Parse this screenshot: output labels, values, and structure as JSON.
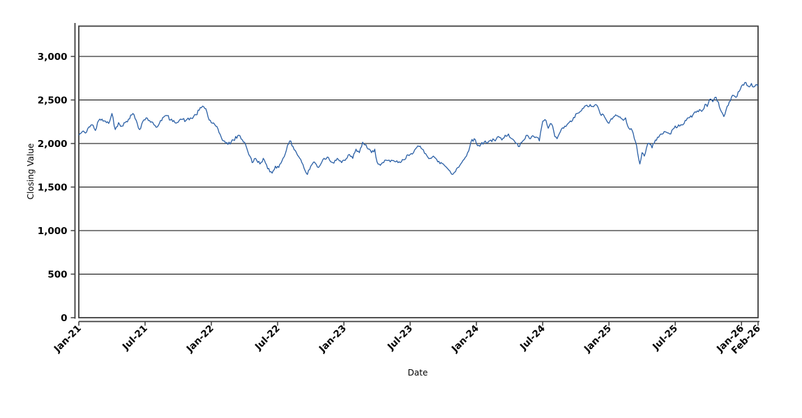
{
  "chart_data": {
    "type": "line",
    "title": "",
    "xlabel": "Date",
    "ylabel": "Closing Value",
    "legend_position": "none",
    "grid": "horizontal-only",
    "x_unit": "decimal months since Jan-2021 (0 = Jan-21)",
    "xlim": [
      0,
      61.5
    ],
    "ylim": [
      0,
      3348
    ],
    "yticks": {
      "values": [
        0,
        500,
        1000,
        1500,
        2000,
        2500,
        3000
      ],
      "labels": [
        "0",
        "500",
        "1,000",
        "1,500",
        "2,000",
        "2,500",
        "3,000"
      ]
    },
    "xticks": {
      "values": [
        0,
        6,
        12,
        18,
        24,
        30,
        36,
        42,
        48,
        54,
        60,
        61.5
      ],
      "labels": [
        "Jan-21",
        "Jul-21",
        "Jan-22",
        "Jul-22",
        "Jan-23",
        "Jul-23",
        "Jan-24",
        "Jul-24",
        "Jan-25",
        "Jul-25",
        "Jan-26",
        "Feb-26"
      ]
    },
    "series": [
      {
        "name": "Closing Value",
        "color": "#2a5fa5",
        "points": [
          [
            0,
            2095
          ],
          [
            0.3,
            2135
          ],
          [
            0.6,
            2120
          ],
          [
            0.9,
            2190
          ],
          [
            1.2,
            2215
          ],
          [
            1.5,
            2150
          ],
          [
            1.8,
            2265
          ],
          [
            2.1,
            2280
          ],
          [
            2.5,
            2240
          ],
          [
            2.8,
            2255
          ],
          [
            3,
            2345
          ],
          [
            3.3,
            2160
          ],
          [
            3.6,
            2240
          ],
          [
            3.9,
            2200
          ],
          [
            4.2,
            2240
          ],
          [
            4.5,
            2280
          ],
          [
            4.9,
            2345
          ],
          [
            5.2,
            2265
          ],
          [
            5.5,
            2160
          ],
          [
            5.8,
            2255
          ],
          [
            6.1,
            2295
          ],
          [
            6.4,
            2265
          ],
          [
            6.8,
            2215
          ],
          [
            7.1,
            2190
          ],
          [
            7.4,
            2265
          ],
          [
            7.7,
            2305
          ],
          [
            8,
            2320
          ],
          [
            8.3,
            2270
          ],
          [
            8.7,
            2240
          ],
          [
            9.2,
            2280
          ],
          [
            9.7,
            2265
          ],
          [
            10.2,
            2290
          ],
          [
            10.6,
            2330
          ],
          [
            11.2,
            2430
          ],
          [
            11.5,
            2400
          ],
          [
            11.8,
            2270
          ],
          [
            12.4,
            2200
          ],
          [
            13.1,
            2030
          ],
          [
            13.5,
            1990
          ],
          [
            14,
            2040
          ],
          [
            14.5,
            2095
          ],
          [
            15,
            2015
          ],
          [
            15.2,
            1950
          ],
          [
            15.7,
            1780
          ],
          [
            16,
            1830
          ],
          [
            16.4,
            1765
          ],
          [
            16.7,
            1830
          ],
          [
            17.1,
            1710
          ],
          [
            17.5,
            1660
          ],
          [
            17.8,
            1740
          ],
          [
            18.1,
            1725
          ],
          [
            18.8,
            1925
          ],
          [
            19.1,
            2030
          ],
          [
            19.4,
            1965
          ],
          [
            19.7,
            1895
          ],
          [
            20.1,
            1815
          ],
          [
            20.5,
            1685
          ],
          [
            20.7,
            1645
          ],
          [
            21,
            1740
          ],
          [
            21.3,
            1790
          ],
          [
            21.7,
            1725
          ],
          [
            22.1,
            1815
          ],
          [
            22.5,
            1845
          ],
          [
            23,
            1780
          ],
          [
            23.4,
            1830
          ],
          [
            23.8,
            1780
          ],
          [
            24.1,
            1805
          ],
          [
            24.4,
            1870
          ],
          [
            24.8,
            1830
          ],
          [
            25.1,
            1935
          ],
          [
            25.4,
            1895
          ],
          [
            25.7,
            2015
          ],
          [
            26.1,
            1950
          ],
          [
            26.5,
            1895
          ],
          [
            26.8,
            1935
          ],
          [
            27,
            1790
          ],
          [
            27.3,
            1750
          ],
          [
            27.6,
            1780
          ],
          [
            27.9,
            1805
          ],
          [
            28.2,
            1790
          ],
          [
            28.5,
            1805
          ],
          [
            28.9,
            1780
          ],
          [
            29.2,
            1790
          ],
          [
            29.5,
            1815
          ],
          [
            29.8,
            1870
          ],
          [
            30.1,
            1885
          ],
          [
            30.4,
            1925
          ],
          [
            30.8,
            1965
          ],
          [
            31.1,
            1935
          ],
          [
            31.4,
            1885
          ],
          [
            31.8,
            1830
          ],
          [
            32.1,
            1855
          ],
          [
            32.5,
            1790
          ],
          [
            33,
            1765
          ],
          [
            33.3,
            1725
          ],
          [
            33.6,
            1685
          ],
          [
            33.8,
            1645
          ],
          [
            34,
            1670
          ],
          [
            34.2,
            1710
          ],
          [
            34.5,
            1750
          ],
          [
            34.9,
            1820
          ],
          [
            35.2,
            1895
          ],
          [
            35.5,
            2015
          ],
          [
            35.8,
            2055
          ],
          [
            36.1,
            1975
          ],
          [
            36.4,
            1990
          ],
          [
            36.8,
            2030
          ],
          [
            37,
            2005
          ],
          [
            37.3,
            2040
          ],
          [
            37.7,
            2030
          ],
          [
            38,
            2080
          ],
          [
            38.3,
            2040
          ],
          [
            38.6,
            2095
          ],
          [
            38.9,
            2110
          ],
          [
            39.2,
            2055
          ],
          [
            39.5,
            2015
          ],
          [
            39.8,
            1965
          ],
          [
            40,
            2005
          ],
          [
            40.2,
            2030
          ],
          [
            40.6,
            2095
          ],
          [
            40.9,
            2055
          ],
          [
            41.2,
            2080
          ],
          [
            41.5,
            2070
          ],
          [
            41.7,
            2030
          ],
          [
            42,
            2255
          ],
          [
            42.3,
            2265
          ],
          [
            42.5,
            2175
          ],
          [
            42.7,
            2230
          ],
          [
            42.9,
            2200
          ],
          [
            43.1,
            2080
          ],
          [
            43.3,
            2055
          ],
          [
            43.6,
            2135
          ],
          [
            43.9,
            2175
          ],
          [
            44.2,
            2215
          ],
          [
            44.7,
            2265
          ],
          [
            45.1,
            2345
          ],
          [
            45.5,
            2375
          ],
          [
            46,
            2440
          ],
          [
            46.4,
            2425
          ],
          [
            46.9,
            2440
          ],
          [
            47.2,
            2345
          ],
          [
            47.6,
            2305
          ],
          [
            47.9,
            2240
          ],
          [
            48.3,
            2280
          ],
          [
            48.6,
            2330
          ],
          [
            48.9,
            2305
          ],
          [
            49.2,
            2280
          ],
          [
            49.5,
            2295
          ],
          [
            49.8,
            2175
          ],
          [
            50.1,
            2150
          ],
          [
            50.3,
            2055
          ],
          [
            50.5,
            1975
          ],
          [
            50.8,
            1765
          ],
          [
            51,
            1895
          ],
          [
            51.2,
            1855
          ],
          [
            51.4,
            1950
          ],
          [
            51.6,
            2005
          ],
          [
            51.9,
            1950
          ],
          [
            52.2,
            2040
          ],
          [
            52.7,
            2110
          ],
          [
            53.1,
            2135
          ],
          [
            53.5,
            2110
          ],
          [
            53.9,
            2175
          ],
          [
            54.3,
            2215
          ],
          [
            54.8,
            2230
          ],
          [
            55.2,
            2295
          ],
          [
            55.6,
            2330
          ],
          [
            56,
            2375
          ],
          [
            56.5,
            2385
          ],
          [
            56.7,
            2450
          ],
          [
            56.9,
            2425
          ],
          [
            57.1,
            2505
          ],
          [
            57.4,
            2480
          ],
          [
            57.6,
            2530
          ],
          [
            57.9,
            2480
          ],
          [
            58.1,
            2385
          ],
          [
            58.4,
            2310
          ],
          [
            58.6,
            2385
          ],
          [
            58.9,
            2480
          ],
          [
            59.2,
            2555
          ],
          [
            59.5,
            2530
          ],
          [
            59.8,
            2600
          ],
          [
            60.1,
            2675
          ],
          [
            60.3,
            2700
          ],
          [
            60.5,
            2665
          ],
          [
            60.7,
            2650
          ],
          [
            60.9,
            2690
          ],
          [
            61.1,
            2650
          ],
          [
            61.3,
            2675
          ],
          [
            61.5,
            2660
          ]
        ]
      }
    ]
  },
  "style": {
    "background": "#ffffff",
    "line_color": "#2a5fa5",
    "grid_color": "#000000",
    "frame_color": "#3f3f3f",
    "axis_color": "#3f3f3f",
    "tick_label_color": "#000000"
  }
}
